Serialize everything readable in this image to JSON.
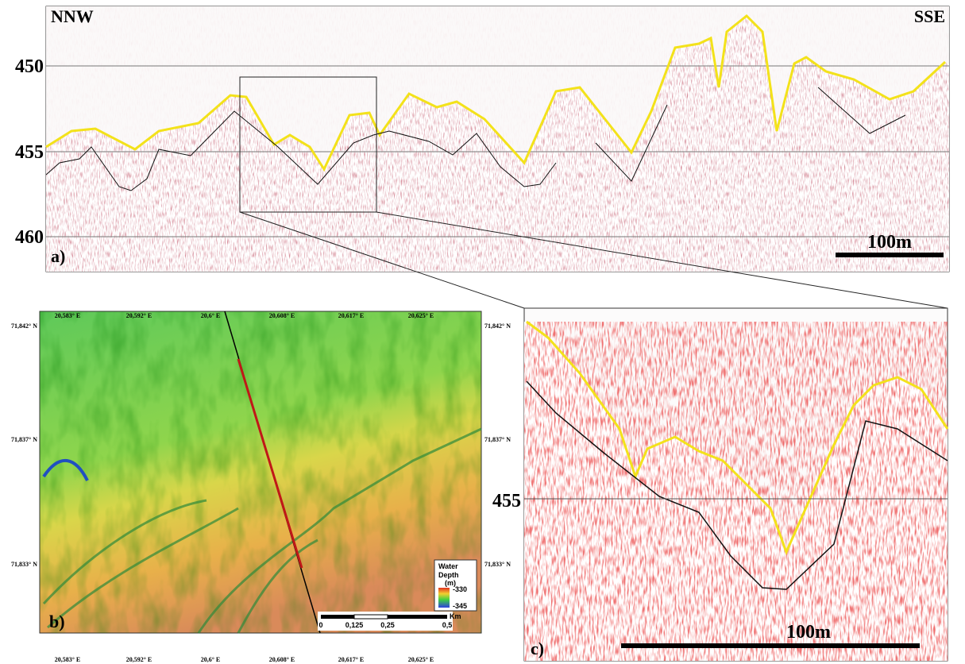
{
  "panel_a": {
    "left_label": "NNW",
    "right_label": "SSE",
    "depth_labels": [
      "450",
      "455",
      "460"
    ],
    "panel_label": "a)",
    "scale_label": "100m"
  },
  "map": {
    "top_longitudes": [
      "20,583° E",
      "20,592° E",
      "20,6° E",
      "20,608° E",
      "20,617° E",
      "20,625° E"
    ],
    "bottom_longitudes": [
      "20,583° E",
      "20,592° E",
      "20,6° E",
      "20,608° E",
      "20,617° E",
      "20,625° E"
    ],
    "left_latitudes": [
      "71,842° N",
      "71,837° N",
      "71,833° N"
    ],
    "right_latitudes": [
      "71,842° N",
      "71,837° N",
      "71,833° N"
    ],
    "legend": {
      "title_lines": [
        "Water",
        "Depth"
      ],
      "unit": "(m)",
      "max": "-330",
      "min": "-345"
    },
    "scale": {
      "ticks": [
        "0",
        "0,125",
        "0,25",
        "0,5"
      ],
      "unit": "Km"
    },
    "panel_label": "b)"
  },
  "panel_c": {
    "depth_label": "455",
    "scale_label": "100m",
    "panel_label": "c)"
  }
}
